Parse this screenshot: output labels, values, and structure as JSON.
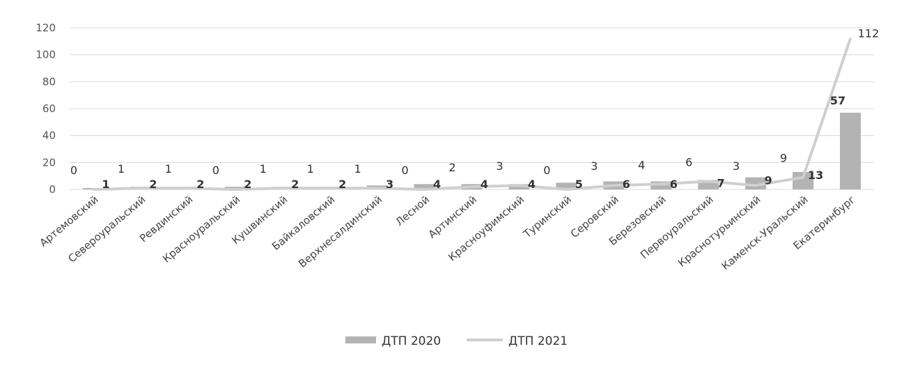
{
  "chart_data": {
    "type": "bar",
    "categories": [
      "Артемовский",
      "Североуральский",
      "Ревдинский",
      "Красноуральский",
      "Кушвинский",
      "Байкаловский",
      "Верхнесалдинский",
      "Лесной",
      "Артинский",
      "Красноуфимский",
      "Туринский",
      "Серовский",
      "Березовский",
      "Первоуральский",
      "Краснотурьинский",
      "Каменск-Уральский",
      "Екатеринбург"
    ],
    "series": [
      {
        "name": "ДТП 2020",
        "kind": "bar",
        "color": "#b3b3b3",
        "values": [
          1,
          2,
          2,
          2,
          2,
          2,
          3,
          4,
          4,
          4,
          5,
          6,
          6,
          7,
          9,
          13,
          57
        ]
      },
      {
        "name": "ДТП 2021",
        "kind": "line",
        "color": "#cfcfcf",
        "values": [
          0,
          1,
          1,
          0,
          1,
          1,
          1,
          0,
          2,
          3,
          0,
          3,
          4,
          6,
          3,
          9,
          112
        ]
      }
    ],
    "ylim": [
      0,
      120
    ],
    "yticks": [
      0,
      20,
      40,
      60,
      80,
      100,
      120
    ],
    "grid": true,
    "legend": "bottom"
  }
}
